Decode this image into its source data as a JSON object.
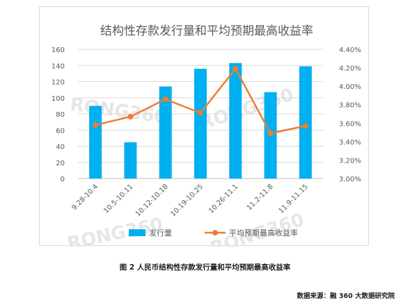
{
  "chart_data": {
    "type": "bar+line",
    "title": "结构性存款发行量和平均预期最高收益率",
    "categories": [
      "9.28-10.4",
      "10.5-10.11",
      "10.12-10.18",
      "10.19-10.25",
      "10.26-11.1",
      "11.2-11.8",
      "11.9-11.15"
    ],
    "series": [
      {
        "name": "发行量",
        "type": "bar",
        "axis": "left",
        "color": "#00b0f0",
        "values": [
          90,
          45,
          114,
          136,
          143,
          107,
          139
        ]
      },
      {
        "name": "平均预期最高收益率",
        "type": "line",
        "axis": "right",
        "color": "#ed7d31",
        "values": [
          3.58,
          3.67,
          3.86,
          3.71,
          4.19,
          3.49,
          3.57
        ]
      }
    ],
    "ylim_left": [
      0,
      160
    ],
    "yticks_left": [
      0,
      20,
      40,
      60,
      80,
      100,
      120,
      140,
      160
    ],
    "ylim_right": [
      3.0,
      4.4
    ],
    "yticks_right": [
      "3.00%",
      "3.20%",
      "3.40%",
      "3.60%",
      "3.80%",
      "4.00%",
      "4.20%",
      "4.40%"
    ],
    "grid": true,
    "legend_position": "bottom"
  },
  "caption": "图 2 人民币结构性存款发行量和平均预期最高收益率",
  "source": "数据来源：融 360 大数据研究院",
  "watermark_text": "RONG360"
}
